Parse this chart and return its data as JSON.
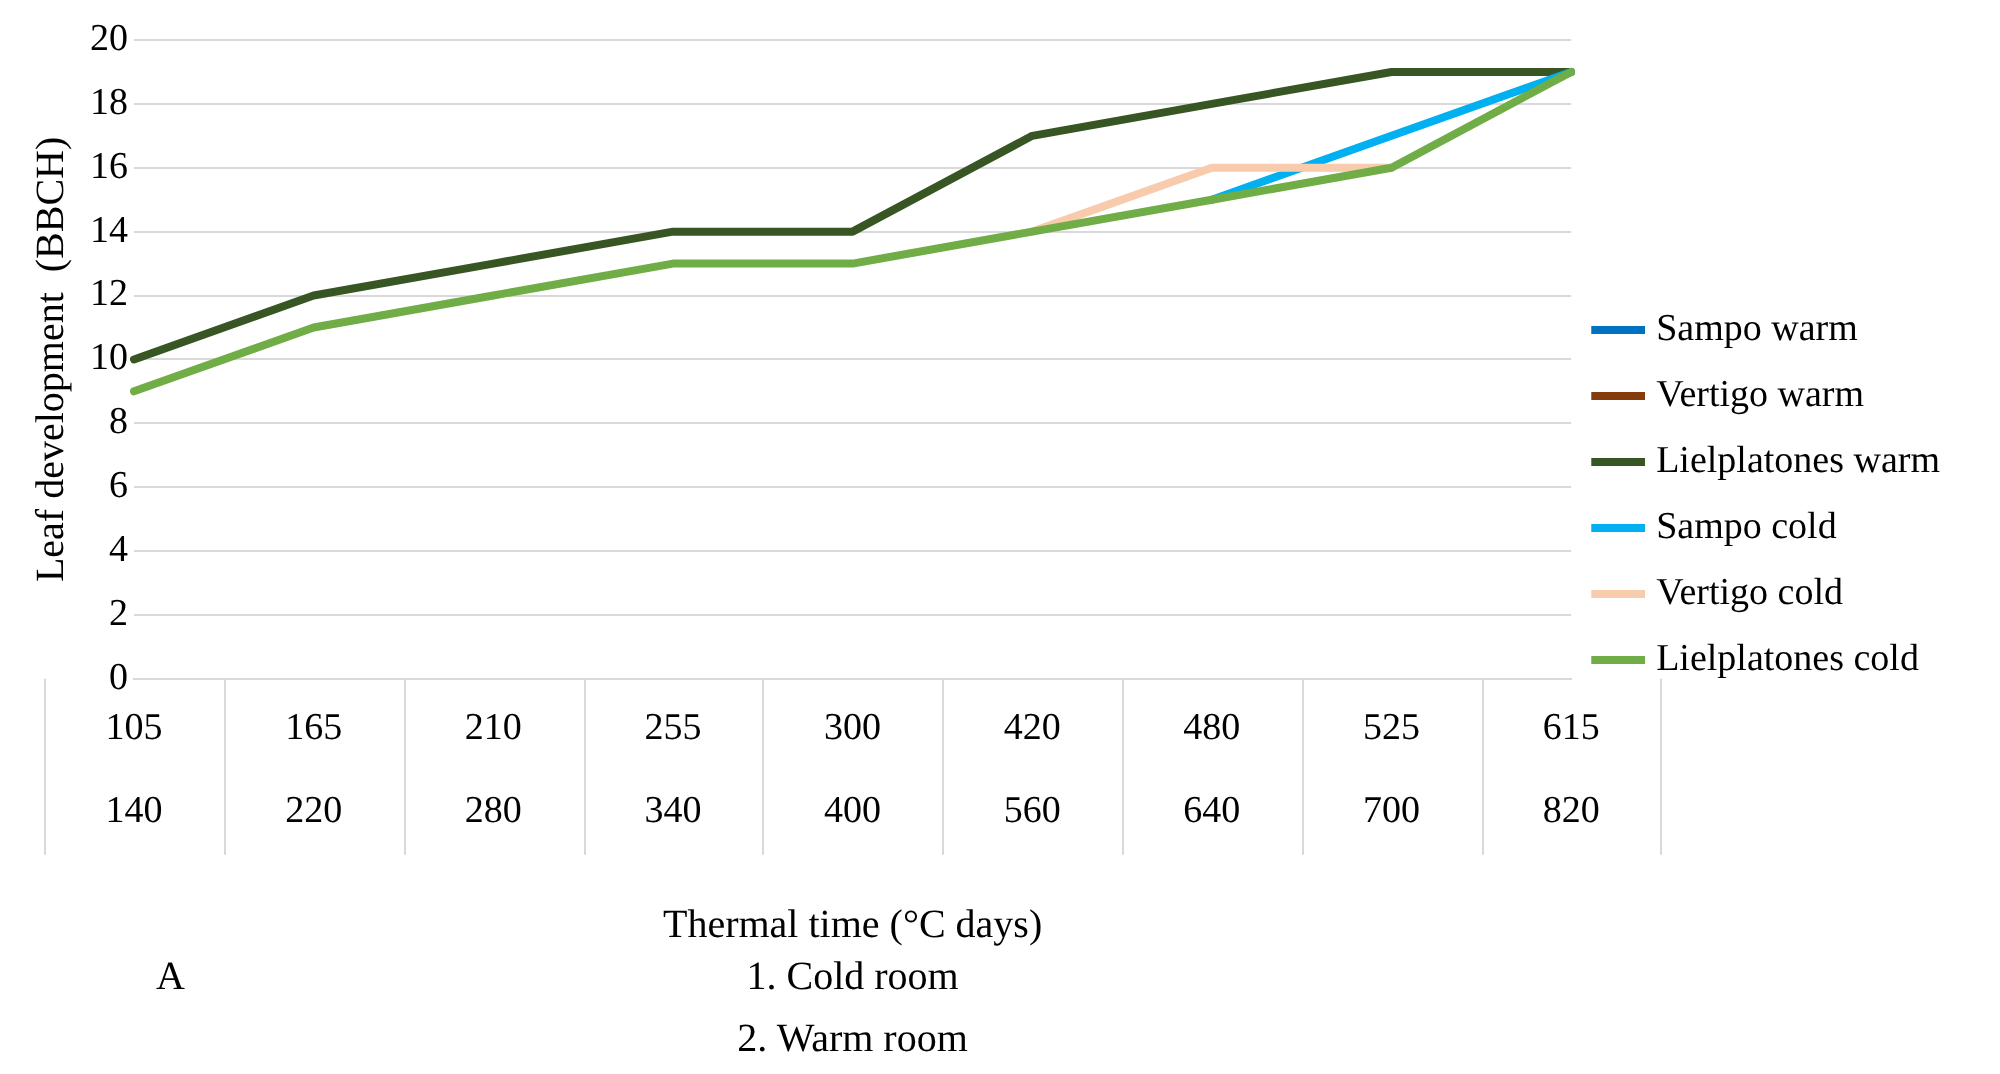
{
  "chart_data": {
    "type": "line",
    "ylabel": "Leaf development  (BBCH)",
    "xlabel": "Thermal time (°C days)",
    "categories": [
      "105\n140",
      "165\n220",
      "210\n280",
      "255\n340",
      "300\n400",
      "420\n560",
      "480\n640",
      "525\n700",
      "615\n820"
    ],
    "series": [
      {
        "name": "Sampo warm",
        "color": "#0070c0",
        "values": [
          null,
          null,
          null,
          null,
          null,
          null,
          null,
          null,
          null
        ]
      },
      {
        "name": "Vertigo warm",
        "color": "#843c0c",
        "values": [
          null,
          null,
          null,
          null,
          null,
          null,
          null,
          null,
          null
        ]
      },
      {
        "name": "Lielplatones warm",
        "color": "#375623",
        "values": [
          10,
          12,
          13,
          14,
          14,
          17,
          18,
          19,
          19
        ]
      },
      {
        "name": "Sampo cold",
        "color": "#00b0f0",
        "values": [
          null,
          null,
          null,
          null,
          null,
          null,
          15,
          17,
          19
        ]
      },
      {
        "name": "Vertigo cold",
        "color": "#f8cbad",
        "values": [
          null,
          null,
          null,
          null,
          null,
          14,
          16,
          16,
          null
        ]
      },
      {
        "name": "Lielplatones cold",
        "color": "#70ad47",
        "values": [
          9,
          11,
          12,
          13,
          13,
          14,
          15,
          16,
          19
        ]
      }
    ],
    "ylim": [
      0,
      20
    ],
    "yticks": [
      0,
      2,
      4,
      6,
      8,
      10,
      12,
      14,
      16,
      18,
      20
    ],
    "grid": "y",
    "legend": "right",
    "marker": "none",
    "line_style": "solid",
    "annotations": [
      "A",
      "1. Cold room",
      "2. Warm room"
    ]
  }
}
